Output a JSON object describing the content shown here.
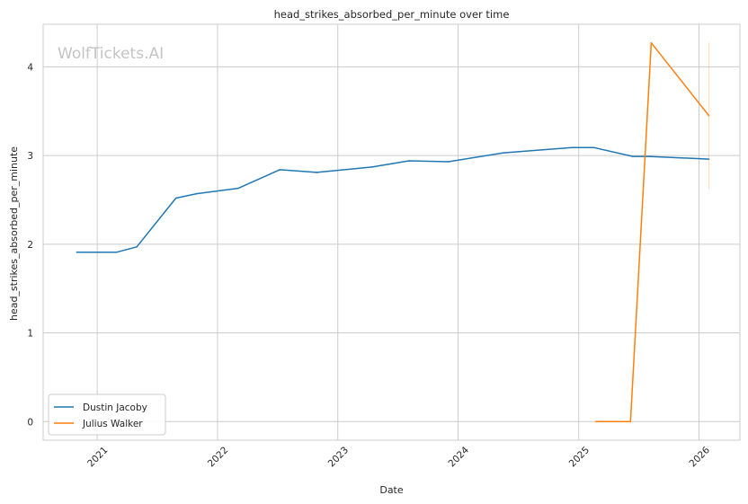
{
  "chart_data": {
    "type": "line",
    "title": "head_strikes_absorbed_per_minute over time",
    "xlabel": "Date",
    "ylabel": "head_strikes_absorbed_per_minute",
    "watermark": "WolfTickets.AI",
    "x_ticks": [
      "2021",
      "2022",
      "2023",
      "2024",
      "2025",
      "2026"
    ],
    "y_ticks": [
      "0",
      "1",
      "2",
      "3",
      "4"
    ],
    "xlim": [
      "2020-07-21",
      "2026-05-05"
    ],
    "ylim": [
      -0.21,
      4.48
    ],
    "grid": true,
    "legend_position": "lower-left",
    "series": [
      {
        "name": "Dustin Jacoby",
        "color": "#1f77b4",
        "points": [
          [
            "2020-10-31",
            1.91
          ],
          [
            "2021-03-01",
            1.91
          ],
          [
            "2021-05-01",
            1.97
          ],
          [
            "2021-08-28",
            2.52
          ],
          [
            "2021-10-30",
            2.57
          ],
          [
            "2022-03-05",
            2.63
          ],
          [
            "2022-07-09",
            2.84
          ],
          [
            "2022-10-29",
            2.81
          ],
          [
            "2023-04-15",
            2.87
          ],
          [
            "2023-08-05",
            2.94
          ],
          [
            "2023-12-02",
            2.93
          ],
          [
            "2024-05-18",
            3.03
          ],
          [
            "2024-12-14",
            3.09
          ],
          [
            "2025-02-15",
            3.09
          ],
          [
            "2025-06-14",
            2.99
          ],
          [
            "2025-08-02",
            2.99
          ],
          [
            "2026-01-31",
            2.96
          ]
        ]
      },
      {
        "name": "Julius Walker",
        "color": "#ff7f0e",
        "points": [
          [
            "2025-02-22",
            0.0
          ],
          [
            "2025-06-07",
            0.0
          ],
          [
            "2025-08-09",
            4.27
          ],
          [
            "2026-01-31",
            3.45
          ]
        ],
        "error_bar": {
          "x": "2026-01-31",
          "low": 2.62,
          "high": 4.28
        }
      }
    ]
  }
}
